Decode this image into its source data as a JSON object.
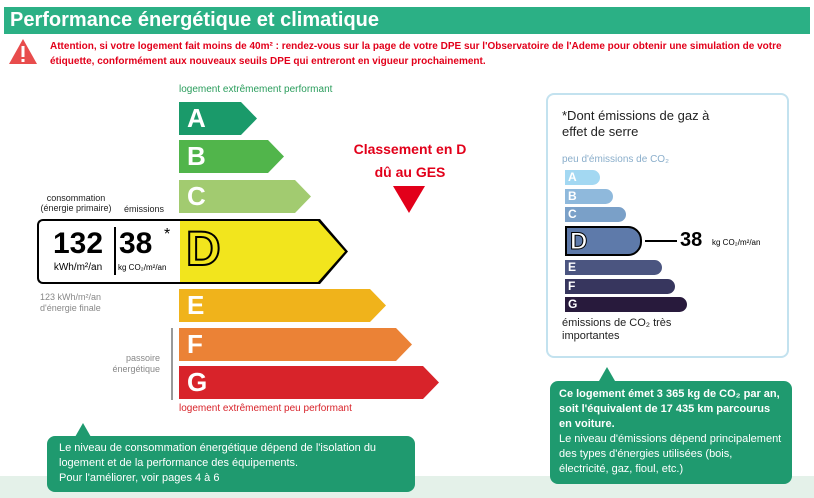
{
  "title": "Performance énergétique et climatique",
  "warning": "Attention, si votre logement fait moins de 40m² : rendez-vous sur la page de votre DPE sur l'Observatoire de l'Ademe pour obtenir une simulation de votre étiquette, conformément aux nouveaux seuils DPE qui entreront en vigueur prochainement.",
  "dpe": {
    "top_label": "logement extrêmement performant",
    "bottom_label": "logement extrêmement peu performant",
    "classes": [
      {
        "letter": "A",
        "color": "#1a9a6a"
      },
      {
        "letter": "B",
        "color": "#51b54b"
      },
      {
        "letter": "C",
        "color": "#a2cb70"
      },
      {
        "letter": "D",
        "color": "#f2e51d"
      },
      {
        "letter": "E",
        "color": "#f0b31b"
      },
      {
        "letter": "F",
        "color": "#eb8236"
      },
      {
        "letter": "G",
        "color": "#d8232a"
      }
    ],
    "current_class": "D",
    "consumption_header": "consommation (énergie primaire)",
    "emissions_header": "émissions",
    "consumption_value": "132",
    "consumption_unit": "kWh/m²/an",
    "emissions_value": "38",
    "emissions_asterisk": "*",
    "emissions_unit": "kg CO₂/m²/an",
    "final_energy": "123 kWh/m²/an d'énergie finale",
    "passoire": "passoire énergétique",
    "classement_line1": "Classement en D",
    "classement_line2": "dû au GES"
  },
  "ges": {
    "title": "*Dont émissions de gaz à effet de serre",
    "top_label": "peu d'émissions de CO₂",
    "bottom_label": "émissions de CO₂ très importantes",
    "classes": [
      {
        "letter": "A",
        "color": "#a3d8f2"
      },
      {
        "letter": "B",
        "color": "#8fb9dc"
      },
      {
        "letter": "C",
        "color": "#7aa0c8"
      },
      {
        "letter": "D",
        "color": "#5e7aaa"
      },
      {
        "letter": "E",
        "color": "#4b5580"
      },
      {
        "letter": "F",
        "color": "#37365e"
      },
      {
        "letter": "G",
        "color": "#281a3c"
      }
    ],
    "current_class": "D",
    "value": "38",
    "unit": "kg CO₂/m²/an"
  },
  "callout_left": {
    "line1": "Le niveau de consommation énergétique dépend de l'isolation du logement et de la performance des équipements.",
    "line2": "Pour l'améliorer, voir pages 4 à 6"
  },
  "callout_right": {
    "bold": "Ce logement émet 3 365 kg de CO₂ par an, soit l'équivalent de 17 435 km parcourus en voiture.",
    "text": "Le niveau d'émissions dépend principalement des types d'énergies utilisées (bois, électricité, gaz, fioul, etc.)"
  },
  "colors": {
    "brand": "#2bb085",
    "warning": "#e2001a",
    "callout": "#1f9a6f"
  }
}
